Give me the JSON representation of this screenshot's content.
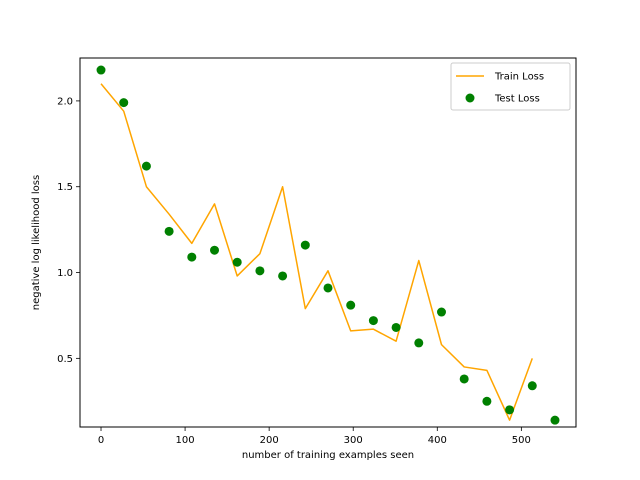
{
  "chart_data": {
    "type": "line",
    "title": "",
    "xlabel": "number of training examples seen",
    "ylabel": "negative log likelihood loss",
    "xlim": [
      -25,
      565
    ],
    "ylim": [
      0.1,
      2.25
    ],
    "x_ticks": [
      0,
      100,
      200,
      300,
      400,
      500
    ],
    "y_ticks": [
      0.5,
      1.0,
      1.5,
      2.0
    ],
    "x_tick_labels": [
      "0",
      "100",
      "200",
      "300",
      "400",
      "500"
    ],
    "y_tick_labels": [
      "0.5",
      "1.0",
      "1.5",
      "2.0"
    ],
    "grid": false,
    "legend_position": "top-right",
    "series": [
      {
        "name": "Train Loss",
        "kind": "line",
        "color": "#ffa500",
        "x": [
          0,
          27,
          54,
          81,
          108,
          135,
          162,
          189,
          216,
          243,
          270,
          297,
          324,
          351,
          378,
          405,
          432,
          459,
          486,
          513
        ],
        "y": [
          2.1,
          1.94,
          1.5,
          1.34,
          1.17,
          1.4,
          0.98,
          1.11,
          1.5,
          0.79,
          1.01,
          0.66,
          0.67,
          0.6,
          1.07,
          0.58,
          0.45,
          0.43,
          0.14,
          0.5
        ]
      },
      {
        "name": "Test Loss",
        "kind": "scatter",
        "color": "#008000",
        "x": [
          0,
          27,
          54,
          81,
          108,
          135,
          162,
          189,
          216,
          243,
          270,
          297,
          324,
          351,
          378,
          405,
          432,
          459,
          486,
          513,
          540
        ],
        "y": [
          2.18,
          1.99,
          1.62,
          1.24,
          1.09,
          1.13,
          1.06,
          1.01,
          0.98,
          1.16,
          0.91,
          0.81,
          0.72,
          0.68,
          0.59,
          0.77,
          0.38,
          0.25,
          0.2,
          0.34,
          0.14
        ]
      }
    ]
  }
}
